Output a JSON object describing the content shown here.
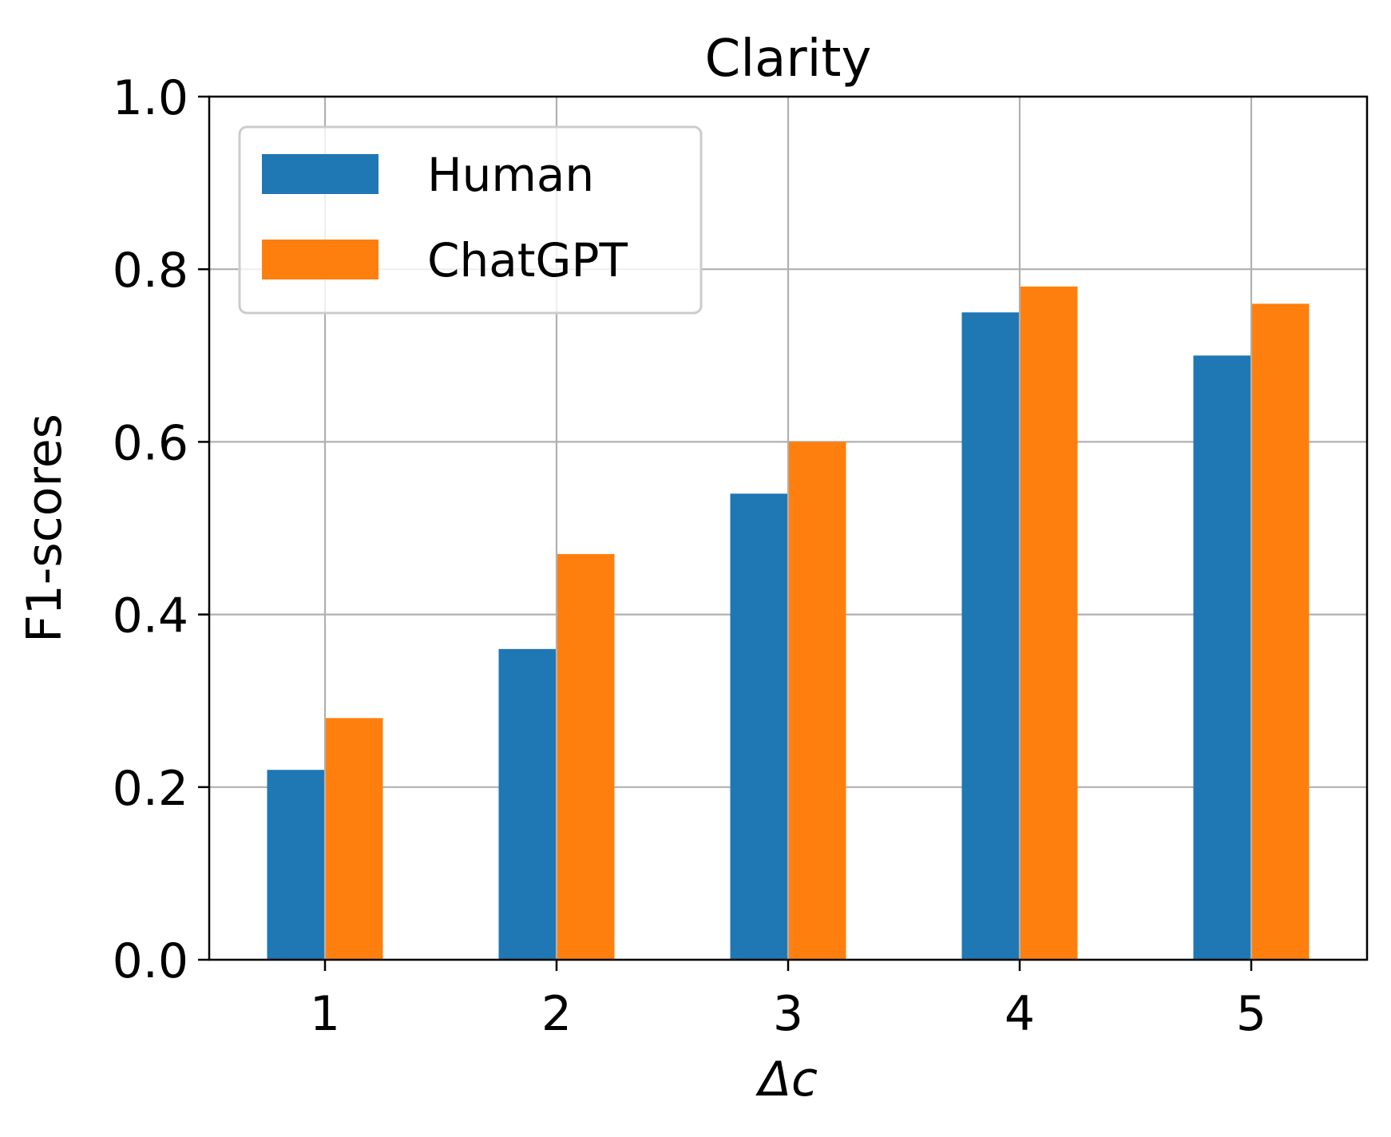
{
  "chart_data": {
    "type": "bar",
    "title": "Clarity",
    "xlabel": "Δc",
    "ylabel": "F1-scores",
    "categories": [
      "1",
      "2",
      "3",
      "4",
      "5"
    ],
    "series": [
      {
        "name": "Human",
        "values": [
          0.22,
          0.36,
          0.54,
          0.75,
          0.7
        ],
        "color": "#1f77b4"
      },
      {
        "name": "ChatGPT",
        "values": [
          0.28,
          0.47,
          0.6,
          0.78,
          0.76
        ],
        "color": "#ff7f0e"
      }
    ],
    "ylim": [
      0,
      1.0
    ],
    "yticks": [
      "0.0",
      "0.2",
      "0.4",
      "0.6",
      "0.8",
      "1.0"
    ],
    "grid": true,
    "legend_position": "top-left"
  }
}
